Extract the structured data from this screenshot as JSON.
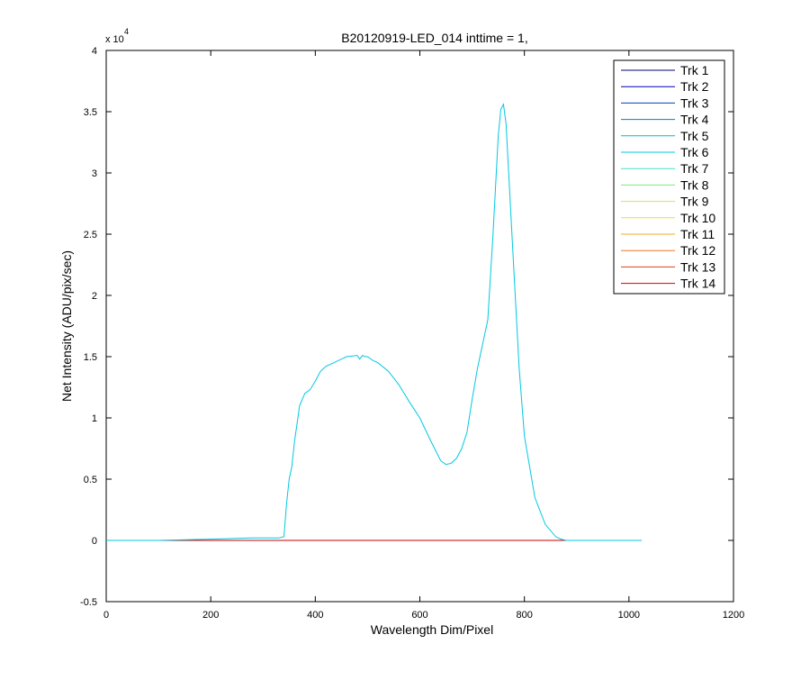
{
  "chart_data": {
    "type": "line",
    "title": "B20120919-LED_014 inttime = 1,",
    "xlabel": "Wavelength Dim/Pixel",
    "ylabel": "Net Intensity (ADU/pix/sec)",
    "y_exponent_label": "x 10",
    "y_exponent_power": "4",
    "xlim": [
      0,
      1200
    ],
    "ylim": [
      -0.5,
      4
    ],
    "y_scale": 10000,
    "xticks": [
      "0",
      "200",
      "400",
      "600",
      "800",
      "1000",
      "1200"
    ],
    "yticks": [
      "-0.5",
      "0",
      "0.5",
      "1",
      "1.5",
      "2",
      "2.5",
      "3",
      "3.5",
      "4"
    ],
    "grid": false,
    "legend_position": "top-right",
    "series": [
      {
        "name": "Trk 1",
        "color": "#000083",
        "flat": true
      },
      {
        "name": "Trk 2",
        "color": "#0000b8",
        "flat": true
      },
      {
        "name": "Trk 3",
        "color": "#0040c0",
        "flat": true
      },
      {
        "name": "Trk 4",
        "color": "#0080b8",
        "flat": true
      },
      {
        "name": "Trk 5",
        "color": "#00b8d8",
        "flat": true
      },
      {
        "name": "Trk 6",
        "color": "#00c8e0",
        "flat": false,
        "x": [
          0,
          100,
          200,
          280,
          330,
          340,
          345,
          350,
          355,
          360,
          370,
          380,
          390,
          400,
          410,
          420,
          440,
          460,
          480,
          485,
          490,
          495,
          500,
          510,
          520,
          540,
          560,
          580,
          600,
          620,
          640,
          650,
          660,
          670,
          680,
          690,
          700,
          710,
          720,
          730,
          740,
          745,
          750,
          755,
          760,
          765,
          770,
          780,
          790,
          800,
          820,
          840,
          860,
          870,
          880,
          890,
          900,
          1000,
          1024
        ],
        "y": [
          0,
          0,
          0.01,
          0.02,
          0.02,
          0.03,
          0.3,
          0.5,
          0.6,
          0.8,
          1.1,
          1.2,
          1.23,
          1.3,
          1.38,
          1.42,
          1.46,
          1.5,
          1.51,
          1.48,
          1.51,
          1.5,
          1.5,
          1.47,
          1.45,
          1.38,
          1.27,
          1.13,
          1.0,
          0.82,
          0.65,
          0.62,
          0.63,
          0.67,
          0.75,
          0.88,
          1.15,
          1.4,
          1.6,
          1.8,
          2.5,
          2.9,
          3.3,
          3.52,
          3.56,
          3.4,
          3.0,
          2.2,
          1.4,
          0.85,
          0.35,
          0.13,
          0.03,
          0.01,
          0,
          0,
          0,
          0,
          0
        ]
      },
      {
        "name": "Trk 7",
        "color": "#40e0c8",
        "flat": true
      },
      {
        "name": "Trk 8",
        "color": "#80e880",
        "flat": true
      },
      {
        "name": "Trk 9",
        "color": "#c0e860",
        "flat": true
      },
      {
        "name": "Trk 10",
        "color": "#e8e040",
        "flat": true
      },
      {
        "name": "Trk 11",
        "color": "#f0b020",
        "flat": true
      },
      {
        "name": "Trk 12",
        "color": "#f07820",
        "flat": true
      },
      {
        "name": "Trk 13",
        "color": "#e04010",
        "flat": true
      },
      {
        "name": "Trk 14",
        "color": "#c80000",
        "flat": true
      }
    ],
    "flat_x_range": [
      0,
      1024
    ],
    "flat_y": 0
  }
}
